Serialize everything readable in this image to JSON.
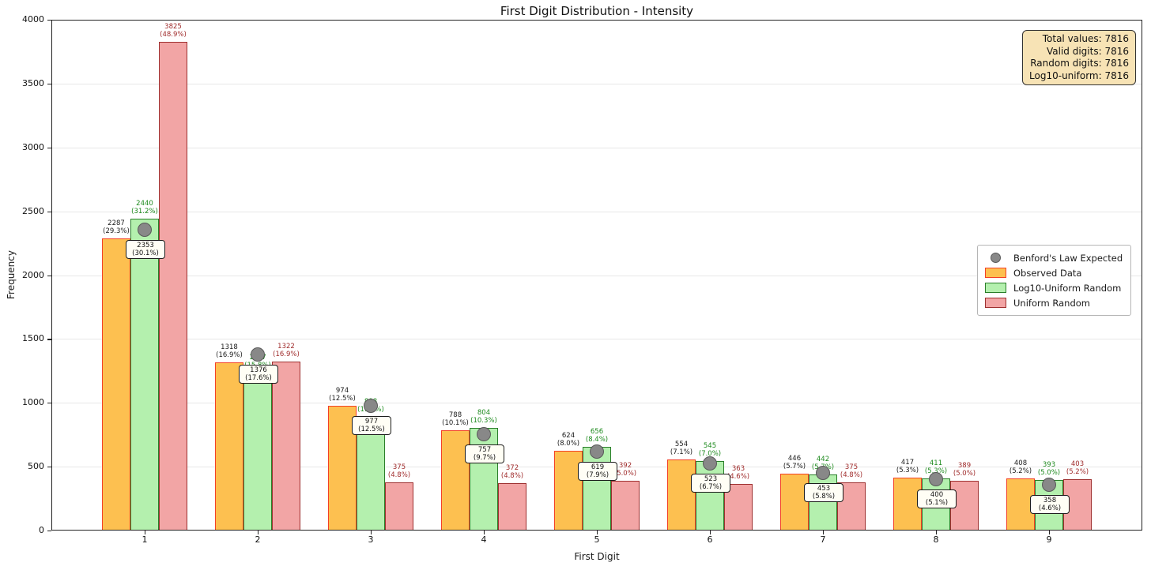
{
  "stats_box": {
    "lines": [
      "Total values: 7816",
      "Valid digits: 7816",
      "Random digits: 7816",
      "Log10-uniform: 7816"
    ]
  },
  "legend": {
    "items": [
      {
        "label": "Benford's Law Expected",
        "marker": "gray-circle"
      },
      {
        "label": "Observed Data",
        "marker": "orange-swatch"
      },
      {
        "label": "Log10-Uniform Random",
        "marker": "green-swatch"
      },
      {
        "label": "Uniform Random",
        "marker": "pink-swatch"
      }
    ]
  },
  "chart_data": {
    "type": "bar",
    "title": "First Digit Distribution - Intensity",
    "xlabel": "First Digit",
    "ylabel": "Frequency",
    "ylim": [
      0,
      4000
    ],
    "yticks": [
      0,
      500,
      1000,
      1500,
      2000,
      2500,
      3000,
      3500,
      4000
    ],
    "grid": "horizontal",
    "legend_position": "center-right",
    "categories": [
      "1",
      "2",
      "3",
      "4",
      "5",
      "6",
      "7",
      "8",
      "9"
    ],
    "series": [
      {
        "name": "Observed Data",
        "fill": "#fdc050",
        "edge": "#f34026",
        "label_color": "#1a1a1a",
        "values": [
          2287,
          1318,
          974,
          788,
          624,
          554,
          446,
          417,
          408
        ],
        "pcts": [
          "29.3%",
          "16.9%",
          "12.5%",
          "10.1%",
          "8.0%",
          "7.1%",
          "5.7%",
          "5.3%",
          "5.2%"
        ]
      },
      {
        "name": "Log10-Uniform Random",
        "fill": "#b4f0ae",
        "edge": "#2a7e2a",
        "label_color": "#1d8a1d",
        "values": [
          2440,
          1237,
          888,
          804,
          656,
          545,
          442,
          411,
          393
        ],
        "pcts": [
          "31.2%",
          "15.8%",
          "11.4%",
          "10.3%",
          "8.4%",
          "7.0%",
          "5.7%",
          "5.3%",
          "5.0%"
        ]
      },
      {
        "name": "Uniform Random",
        "fill": "#f2a5a5",
        "edge": "#9e3030",
        "label_color": "#a02c2c",
        "values": [
          3825,
          1322,
          375,
          372,
          392,
          363,
          375,
          389,
          403
        ],
        "pcts": [
          "48.9%",
          "16.9%",
          "4.8%",
          "4.8%",
          "5.0%",
          "4.6%",
          "4.8%",
          "5.0%",
          "5.2%"
        ]
      }
    ],
    "benford_expected": {
      "name": "Benford's Law Expected",
      "dot_fill": "#888888",
      "dot_edge": "#595959",
      "values": [
        2353,
        1376,
        977,
        757,
        619,
        523,
        453,
        400,
        358
      ],
      "pcts": [
        "30.1%",
        "17.6%",
        "12.5%",
        "9.7%",
        "7.9%",
        "6.7%",
        "5.8%",
        "5.1%",
        "4.6%"
      ]
    }
  }
}
